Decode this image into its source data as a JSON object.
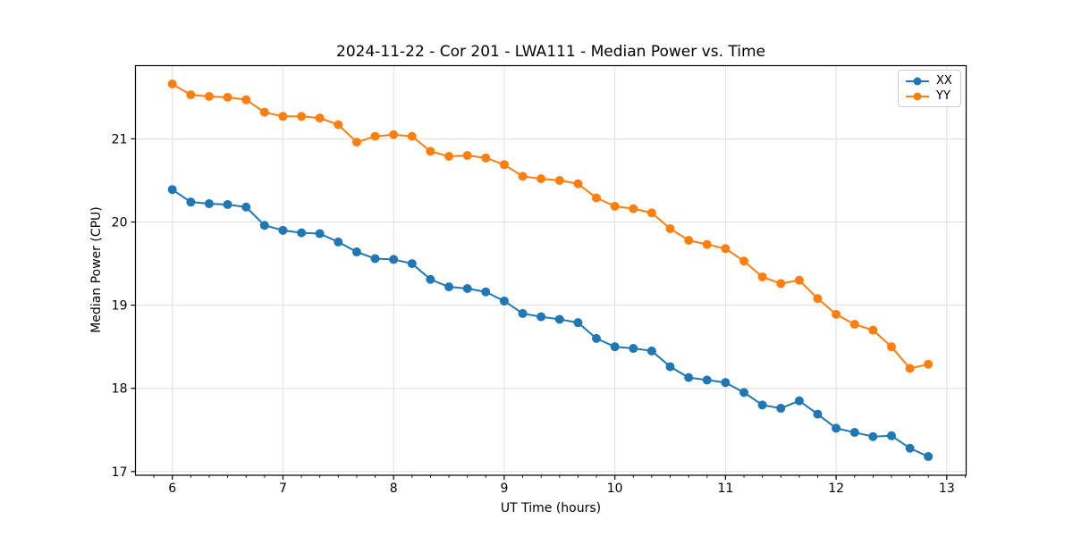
{
  "figure": {
    "title": "2024-11-22 - Cor 201 - LWA111 - Median Power vs. Time",
    "xlabel": "UT Time (hours)",
    "ylabel": "Median Power (CPU)"
  },
  "legend": {
    "position": "upper right",
    "items": [
      {
        "label": "XX",
        "color": "#1f77b4"
      },
      {
        "label": "YY",
        "color": "#ff7f0e"
      }
    ]
  },
  "chart_data": {
    "type": "line",
    "title": "2024-11-22 - Cor 201 - LWA111 - Median Power vs. Time",
    "xlabel": "UT Time (hours)",
    "ylabel": "Median Power (CPU)",
    "grid": true,
    "legend_position": "upper right",
    "marker": "circle",
    "xlim": [
      5.667,
      13.175
    ],
    "ylim": [
      16.955,
      21.88
    ],
    "x_ticks": [
      6,
      7,
      8,
      9,
      10,
      11,
      12,
      13
    ],
    "y_ticks": [
      17,
      18,
      19,
      20,
      21
    ],
    "x_minor_tick_step": 0.16667,
    "x": [
      6.0,
      6.167,
      6.333,
      6.5,
      6.667,
      6.833,
      7.0,
      7.167,
      7.333,
      7.5,
      7.667,
      7.833,
      8.0,
      8.167,
      8.333,
      8.5,
      8.667,
      8.833,
      9.0,
      9.167,
      9.333,
      9.5,
      9.667,
      9.833,
      10.0,
      10.167,
      10.333,
      10.5,
      10.667,
      10.833,
      11.0,
      11.167,
      11.333,
      11.5,
      11.667,
      11.833,
      12.0,
      12.167,
      12.333,
      12.5,
      12.667,
      12.833
    ],
    "series": [
      {
        "name": "XX",
        "color": "#1f77b4",
        "values": [
          20.39,
          20.24,
          20.22,
          20.21,
          20.18,
          19.96,
          19.9,
          19.87,
          19.86,
          19.76,
          19.64,
          19.56,
          19.55,
          19.5,
          19.31,
          19.22,
          19.2,
          19.16,
          19.05,
          18.9,
          18.86,
          18.83,
          18.79,
          18.6,
          18.5,
          18.48,
          18.45,
          18.26,
          18.13,
          18.1,
          18.07,
          17.95,
          17.8,
          17.76,
          17.85,
          17.69,
          17.52,
          17.47,
          17.42,
          17.43,
          17.28,
          17.18
        ]
      },
      {
        "name": "YY",
        "color": "#ff7f0e",
        "values": [
          21.66,
          21.53,
          21.51,
          21.5,
          21.47,
          21.32,
          21.27,
          21.27,
          21.25,
          21.17,
          20.96,
          21.03,
          21.05,
          21.03,
          20.85,
          20.79,
          20.8,
          20.77,
          20.69,
          20.55,
          20.52,
          20.5,
          20.46,
          20.29,
          20.19,
          20.16,
          20.11,
          19.92,
          19.78,
          19.73,
          19.68,
          19.53,
          19.34,
          19.26,
          19.3,
          19.08,
          18.89,
          18.77,
          18.7,
          18.5,
          18.24,
          18.29
        ]
      }
    ]
  },
  "style": {
    "grid_color": "#e0e0e0",
    "spine_color": "#000000",
    "tick_color": "#000000",
    "background": "#ffffff"
  }
}
